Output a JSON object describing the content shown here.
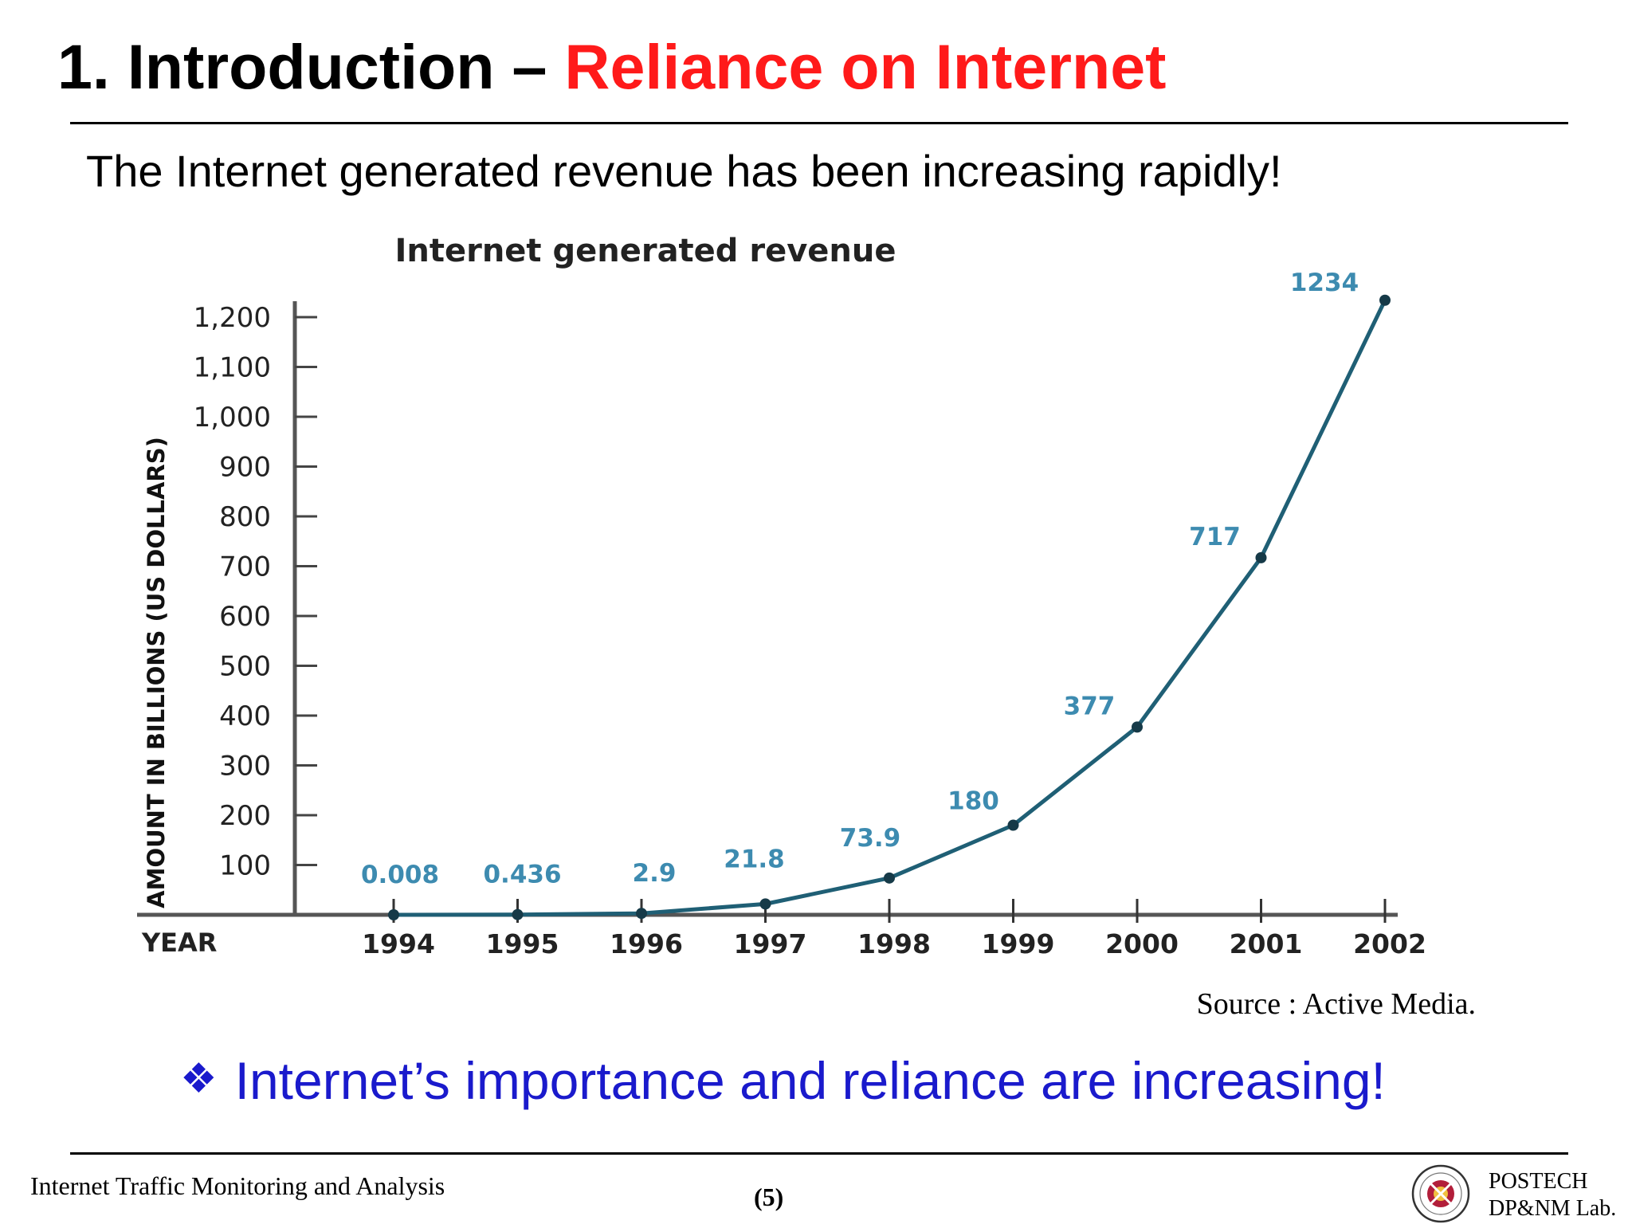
{
  "slide": {
    "title_main": "1. Introduction – ",
    "title_accent": "Reliance on Internet",
    "subtitle": "The Internet generated revenue has been increasing rapidly!",
    "source": "Source : Active Media.",
    "bullet_symbol": "❖",
    "bullet_text": "Internet’s importance and reliance are increasing!",
    "footer_left": "Internet Traffic Monitoring and Analysis",
    "page_number": "(5)",
    "footer_right_line1": "POSTECH",
    "footer_right_line2": "DP&NM Lab.",
    "colors": {
      "title_accent": "#ff1a1a",
      "bullet": "#1a1acc",
      "line": "#1f5f75",
      "data_label": "#3d8bb0"
    }
  },
  "chart_data": {
    "type": "line",
    "title": "Internet generated revenue",
    "xlabel": "YEAR",
    "ylabel": "AMOUNT IN BILLIONS (US DOLLARS)",
    "categories": [
      "1994",
      "1995",
      "1996",
      "1997",
      "1998",
      "1999",
      "2000",
      "2001",
      "2002"
    ],
    "series": [
      {
        "values": [
          0.008,
          0.436,
          2.9,
          21.8,
          73.9,
          180,
          377,
          717,
          1234
        ]
      }
    ],
    "data_labels": [
      "0.008",
      "0.436",
      "2.9",
      "21.8",
      "73.9",
      "180",
      "377",
      "717",
      "1234"
    ],
    "yticks": [
      100,
      200,
      300,
      400,
      500,
      600,
      700,
      800,
      900,
      1000,
      1100,
      1200
    ],
    "ytick_labels": [
      "100",
      "200",
      "300",
      "400",
      "500",
      "600",
      "700",
      "800",
      "900",
      "1,000",
      "1,100",
      "1,200"
    ],
    "ylim": [
      0,
      1200
    ],
    "grid": false,
    "legend": "none"
  }
}
